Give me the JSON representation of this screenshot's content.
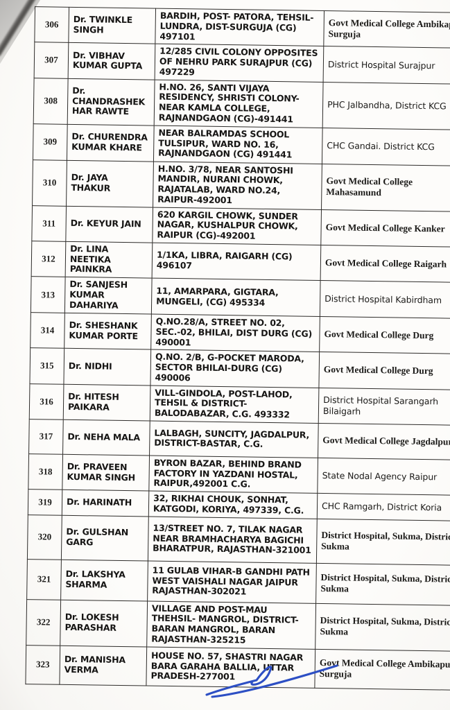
{
  "table": {
    "rows": [
      {
        "sn": "306",
        "name": "Dr. TWINKLE SINGH",
        "address": "BARDIH, POST- PATORA, TEHSIL-LUNDRA, DIST-SURGUJA (CG) 497101",
        "posting": "Govt Medical College Ambikapur Surguja"
      },
      {
        "sn": "307",
        "name": "Dr. VIBHAV KUMAR GUPTA",
        "address": "12/285 CIVIL COLONY OPPOSITES OF NEHRU PARK SURAJPUR (CG) 497229",
        "posting": "District Hospital Surajpur"
      },
      {
        "sn": "308",
        "name": "Dr. CHANDRASHEKHAR RAWTE",
        "address": "H.NO. 26, SANTI VIJAYA RESIDENCY, SHRISTI COLONY-NEAR KAMLA COLLEGE, RAJNANDGAON (CG)-491441",
        "posting": "PHC Jalbandha, District KCG"
      },
      {
        "sn": "309",
        "name": "Dr. CHURENDRA KUMAR KHARE",
        "address": "NEAR BALRAMDAS SCHOOL TULSIPUR, WARD NO. 16, RAJNANDGAON (CG) 491441",
        "posting": "CHC Gandai. District KCG"
      },
      {
        "sn": "310",
        "name": "Dr. JAYA THAKUR",
        "address": "H.NO. 3/78, NEAR SANTOSHI MANDIR, NURANI CHOWK, RAJATALAB, WARD NO.24, RAIPUR-492001",
        "posting": "Govt Medical College Mahasamund"
      },
      {
        "sn": "311",
        "name": "Dr. KEYUR JAIN",
        "address": "620 KARGIL CHOWK, SUNDER NAGAR, KUSHALPUR CHOWK, RAIPUR (CG)-492001",
        "posting": "Govt Medical College Kanker"
      },
      {
        "sn": "312",
        "name": "Dr. LINA NEETIKA PAINKRA",
        "address": "1/1KA, LIBRA, RAIGARH (CG) 496107",
        "posting": "Govt Medical College Raigarh"
      },
      {
        "sn": "313",
        "name": "Dr. SANJESH KUMAR DAHARIYA",
        "address": "11, AMARPARA, GIGTARA, MUNGELI, (CG) 495334",
        "posting": "District Hospital Kabirdham"
      },
      {
        "sn": "314",
        "name": "Dr. SHESHANK KUMAR PORTE",
        "address": "Q.NO.28/A, STREET NO. 02, SEC.-02, BHILAI, DIST DURG (CG) 490001",
        "posting": "Govt Medical College Durg"
      },
      {
        "sn": "315",
        "name": "Dr. NIDHI",
        "address": "Q.NO. 2/B, G-POCKET MARODA, SECTOR BHILAI-DURG (CG) 490006",
        "posting": "Govt Medical College Durg"
      },
      {
        "sn": "316",
        "name": "Dr. HITESH PAIKARA",
        "address": "VILL-GINDOLA, POST-LAHOD, TEHSIL & DISTRICT-BALODABAZAR, C.G. 493332",
        "posting": "District Hospital Sarangarh Bilaigarh"
      },
      {
        "sn": "317",
        "name": "Dr. NEHA MALA",
        "address": "LALBAGH, SUNCITY, JAGDALPUR, DISTRICT-BASTAR, C.G.",
        "posting": "Govt Medical College Jagdalpur"
      },
      {
        "sn": "318",
        "name": "Dr. PRAVEEN KUMAR SINGH",
        "address": "BYRON BAZAR, BEHIND BRAND FACTORY IN YAZDANI HOSTAL, RAIPUR,492001 C.G.",
        "posting": "State Nodal Agency Raipur"
      },
      {
        "sn": "319",
        "name": "Dr. HARINATH",
        "address": "32, RIKHAI CHOUK, SONHAT, KATGODI, KORIYA, 497339, C.G.",
        "posting": "CHC Ramgarh, District Koria"
      },
      {
        "sn": "320",
        "name": "Dr. GULSHAN GARG",
        "address": "13/STREET NO. 7, TILAK NAGAR NEAR BRAMHACHARYA BAGICHI BHARATPUR, RAJASTHAN-321001",
        "posting": "District Hospital, Sukma, District-Sukma"
      },
      {
        "sn": "321",
        "name": "Dr. LAKSHYA SHARMA",
        "address": "11 GULAB VIHAR-B GANDHI PATH WEST VAISHALI NAGAR JAIPUR RAJASTHAN-302021",
        "posting": "District Hospital, Sukma, District-Sukma"
      },
      {
        "sn": "322",
        "name": "Dr. LOKESH PARASHAR",
        "address": "VILLAGE AND POST-MAU THEHSIL- MANGROL, DISTRICT-BARAN MANGROL, BARAN RAJASTHAN-325215",
        "posting": "District Hospital, Sukma, District-Sukma"
      },
      {
        "sn": "323",
        "name": "Dr. MANISHA VERMA",
        "address": "HOUSE NO. 57, SHASTRI NAGAR BARA GARAHA BALLIA, UTTAR PRADESH-277001",
        "posting": "Govt Medical College Ambikapur Surguja"
      }
    ]
  },
  "signature": {
    "ink_color": "#2d4fc4"
  }
}
